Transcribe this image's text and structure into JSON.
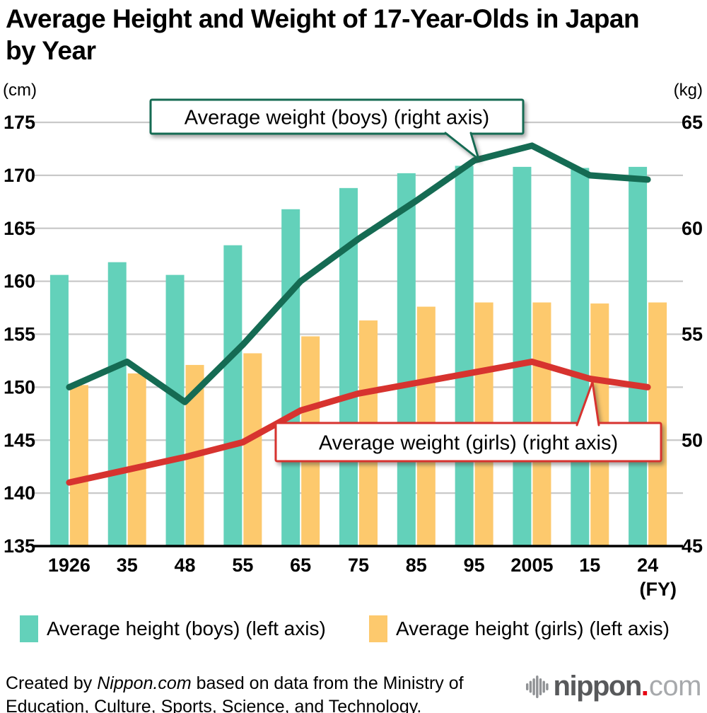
{
  "title": "Average Height and Weight of 17-Year-Olds in Japan by Year",
  "axes": {
    "left_unit": "(cm)",
    "right_unit": "(kg)",
    "x_unit": "(FY)"
  },
  "chart_data": {
    "type": "bar",
    "subtype": "bar-line combo, dual axis",
    "categories": [
      "1926",
      "35",
      "48",
      "55",
      "65",
      "75",
      "85",
      "95",
      "2005",
      "15",
      "24"
    ],
    "series": [
      {
        "name": "Average height (boys) (left axis)",
        "type": "bar",
        "axis": "left",
        "unit": "cm",
        "color": "#63d1ba",
        "values": [
          160.6,
          161.8,
          160.6,
          163.4,
          166.8,
          168.8,
          170.2,
          170.9,
          170.8,
          170.7,
          170.8
        ]
      },
      {
        "name": "Average height (girls) (left axis)",
        "type": "bar",
        "axis": "left",
        "unit": "cm",
        "color": "#fdc96d",
        "values": [
          150.2,
          151.3,
          152.1,
          153.2,
          154.8,
          156.3,
          157.6,
          158.0,
          158.0,
          157.9,
          158.0
        ]
      },
      {
        "name": "Average weight (boys) (right axis)",
        "type": "line",
        "axis": "right",
        "unit": "kg",
        "color": "#156b53",
        "values": [
          52.5,
          53.7,
          51.8,
          54.5,
          57.5,
          59.5,
          61.3,
          63.2,
          63.9,
          62.5,
          62.3
        ]
      },
      {
        "name": "Average weight (girls) (right axis)",
        "type": "line",
        "axis": "right",
        "unit": "kg",
        "color": "#d7332f",
        "values": [
          48.0,
          48.6,
          49.2,
          49.9,
          51.4,
          52.2,
          52.7,
          53.2,
          53.7,
          52.9,
          52.5
        ]
      }
    ],
    "left_axis": {
      "label": "(cm)",
      "min": 135,
      "max": 175,
      "tick_step": 5,
      "ticks": [
        175,
        170,
        165,
        160,
        155,
        150,
        145,
        140,
        135
      ]
    },
    "right_axis": {
      "label": "(kg)",
      "min": 45,
      "max": 65,
      "tick_step": 5,
      "ticks": [
        65,
        60,
        55,
        50,
        45
      ]
    },
    "x_label": "(FY)",
    "grid": true,
    "legend_position": "bottom",
    "annotations": [
      {
        "text": "Average weight (boys) (right axis)",
        "color": "#156b53",
        "points_to": "2005 peak of boys weight line"
      },
      {
        "text": "Average weight (girls) (right axis)",
        "color": "#d7332f",
        "points_to": "2015 point of girls weight line"
      }
    ]
  },
  "legend": {
    "items": [
      {
        "label": "Average height (boys) (left axis)",
        "color": "#63d1ba"
      },
      {
        "label": "Average height (girls) (left axis)",
        "color": "#fdc96d"
      }
    ]
  },
  "footer": {
    "prefix": "Created by ",
    "brand": "Nippon.com",
    "suffix": " based on data from the Ministry of Education, Culture, Sports, Science, and Technology."
  },
  "logo": {
    "word": "nippon",
    "dot": ".",
    "tld": "com"
  },
  "colors": {
    "bar_boys": "#63d1ba",
    "bar_girls": "#fdc96d",
    "line_boys": "#156b53",
    "line_girls": "#d7332f",
    "gridline": "#c9c9c9",
    "axis_line": "#000000",
    "logo_gray": "#58595b",
    "logo_light": "#a7a9ac",
    "logo_red": "#e60012"
  }
}
